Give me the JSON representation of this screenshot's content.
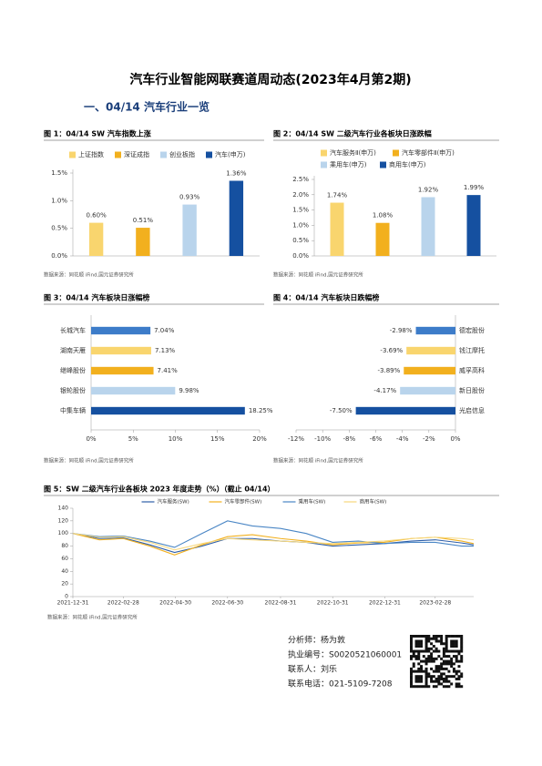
{
  "title": "汽车行业智能网联赛道周动态(2023年4月第2期)",
  "section": "一、04/14 汽车行业一览",
  "chart_data": [
    {
      "type": "bar",
      "title": "图 1：04/14 SW 汽车指数上涨",
      "categories": [
        "上证指数",
        "深证成指",
        "创业板指",
        "汽车(申万)"
      ],
      "values": [
        0.6,
        0.51,
        0.93,
        1.36
      ],
      "value_labels": [
        "0.60%",
        "0.51%",
        "0.93%",
        "1.36%"
      ],
      "colors": [
        "#f9d56e",
        "#f2b01e",
        "#b9d4ec",
        "#1550a0"
      ],
      "ylim": [
        0,
        1.5
      ],
      "yticks": [
        {
          "value": 0,
          "label": "0.0%"
        },
        {
          "value": 0.5,
          "label": "0.5%"
        },
        {
          "value": 1.0,
          "label": "1.0%"
        },
        {
          "value": 1.5,
          "label": "1.5%"
        }
      ],
      "source": "数据来源：同花顺 iFind,国元证券研究所"
    },
    {
      "type": "bar",
      "title": "图 2：04/14 SW 二级汽车行业各板块日涨跌幅",
      "categories": [
        "汽车服务Ⅱ(申万)",
        "汽车零部件Ⅱ(申万)",
        "乘用车(申万)",
        "商用车(申万)"
      ],
      "values": [
        1.74,
        1.08,
        1.92,
        1.99
      ],
      "value_labels": [
        "1.74%",
        "1.08%",
        "1.92%",
        "1.99%"
      ],
      "colors": [
        "#f9d56e",
        "#f2b01e",
        "#b9d4ec",
        "#1550a0"
      ],
      "ylim": [
        0,
        2.5
      ],
      "yticks": [
        {
          "value": 0,
          "label": "0.0%"
        },
        {
          "value": 0.5,
          "label": "0.5%"
        },
        {
          "value": 1.0,
          "label": "1.0%"
        },
        {
          "value": 1.5,
          "label": "1.5%"
        },
        {
          "value": 2.0,
          "label": "2.0%"
        },
        {
          "value": 2.5,
          "label": "2.5%"
        }
      ],
      "source": "数据来源：同花顺 iFind,国元证券研究所"
    },
    {
      "type": "barh",
      "title": "图 3：04/14 汽车板块日涨幅榜",
      "categories": [
        "长城汽车",
        "湖南天雁",
        "继峰股份",
        "银轮股份",
        "中集车辆"
      ],
      "values": [
        7.04,
        7.13,
        7.41,
        9.98,
        18.25
      ],
      "value_labels": [
        "7.04%",
        "7.13%",
        "7.41%",
        "9.98%",
        "18.25%"
      ],
      "colors": [
        "#3d7cc9",
        "#f9d56e",
        "#f2b01e",
        "#b9d4ec",
        "#1550a0"
      ],
      "xlim": [
        0,
        20
      ],
      "xticks": [
        {
          "value": 0,
          "label": "0%"
        },
        {
          "value": 5,
          "label": "5%"
        },
        {
          "value": 10,
          "label": "10%"
        },
        {
          "value": 15,
          "label": "15%"
        },
        {
          "value": 20,
          "label": "20%"
        }
      ],
      "source": "数据来源：同花顺 iFind,国元证券研究所"
    },
    {
      "type": "barh",
      "title": "图 4：04/14 汽车板块日跌幅榜",
      "categories": [
        "德宏股份",
        "钱江摩托",
        "威孚高科",
        "新日股份",
        "光启信息"
      ],
      "values": [
        -2.98,
        -3.69,
        -3.89,
        -4.17,
        -7.5
      ],
      "value_labels": [
        "-2.98%",
        "-3.69%",
        "-3.89%",
        "-4.17%",
        "-7.50%"
      ],
      "colors": [
        "#3d7cc9",
        "#f9d56e",
        "#f2b01e",
        "#b9d4ec",
        "#1550a0"
      ],
      "xlim": [
        -12,
        0
      ],
      "xticks": [
        {
          "value": -12,
          "label": "-12%"
        },
        {
          "value": -10,
          "label": "-10%"
        },
        {
          "value": -8,
          "label": "-8%"
        },
        {
          "value": -6,
          "label": "-6%"
        },
        {
          "value": -4,
          "label": "-4%"
        },
        {
          "value": -2,
          "label": "-2%"
        },
        {
          "value": 0,
          "label": "0%"
        }
      ],
      "source": "数据来源：同花顺 iFind,国元证券研究所"
    },
    {
      "type": "line",
      "title": "图 5：SW 二级汽车行业各板块 2023 年度走势（%）（截止 04/14）",
      "x": [
        "2021-12-31",
        "2022-01-31",
        "2022-02-28",
        "2022-03-31",
        "2022-04-29",
        "2022-05-31",
        "2022-06-30",
        "2022-07-29",
        "2022-08-31",
        "2022-09-30",
        "2022-10-31",
        "2022-11-30",
        "2022-12-30",
        "2023-01-31",
        "2023-02-28",
        "2023-03-31",
        "2023-04-14"
      ],
      "series": [
        {
          "name": "汽车服务(SW)",
          "color": "#2f5fa8",
          "values": [
            100,
            92,
            93,
            82,
            70,
            80,
            92,
            92,
            88,
            86,
            80,
            82,
            84,
            88,
            90,
            85,
            82
          ]
        },
        {
          "name": "汽车零部件(SW)",
          "color": "#f2b01e",
          "values": [
            100,
            90,
            92,
            80,
            66,
            82,
            95,
            98,
            92,
            88,
            82,
            85,
            86,
            92,
            94,
            88,
            84
          ]
        },
        {
          "name": "乘用车(SW)",
          "color": "#4a86c5",
          "values": [
            100,
            95,
            96,
            88,
            78,
            100,
            120,
            112,
            108,
            100,
            86,
            88,
            84,
            86,
            86,
            80,
            80
          ]
        },
        {
          "name": "商用车(SW)",
          "color": "#f6d77c",
          "values": [
            100,
            94,
            95,
            86,
            74,
            84,
            92,
            90,
            88,
            86,
            84,
            86,
            88,
            92,
            94,
            92,
            90
          ]
        }
      ],
      "xlim": [
        "2021-12-31",
        "2023-04-14"
      ],
      "xticks": [
        "2021-12-31",
        "2022-02-28",
        "2022-04-30",
        "2022-06-30",
        "2022-08-31",
        "2022-10-31",
        "2022-12-31",
        "2023-02-28"
      ],
      "ylim": [
        0,
        140
      ],
      "yticks": [
        0,
        20,
        40,
        60,
        80,
        100,
        120,
        140
      ],
      "source": "数据来源：同花顺 iFind,国元证券研究所"
    }
  ],
  "analyst": {
    "name": "分析师：杨为敦",
    "id": "执业编号：S0020521060001",
    "contact": "联系人：刘乐",
    "phone": "联系电话：021-5109-7208"
  }
}
